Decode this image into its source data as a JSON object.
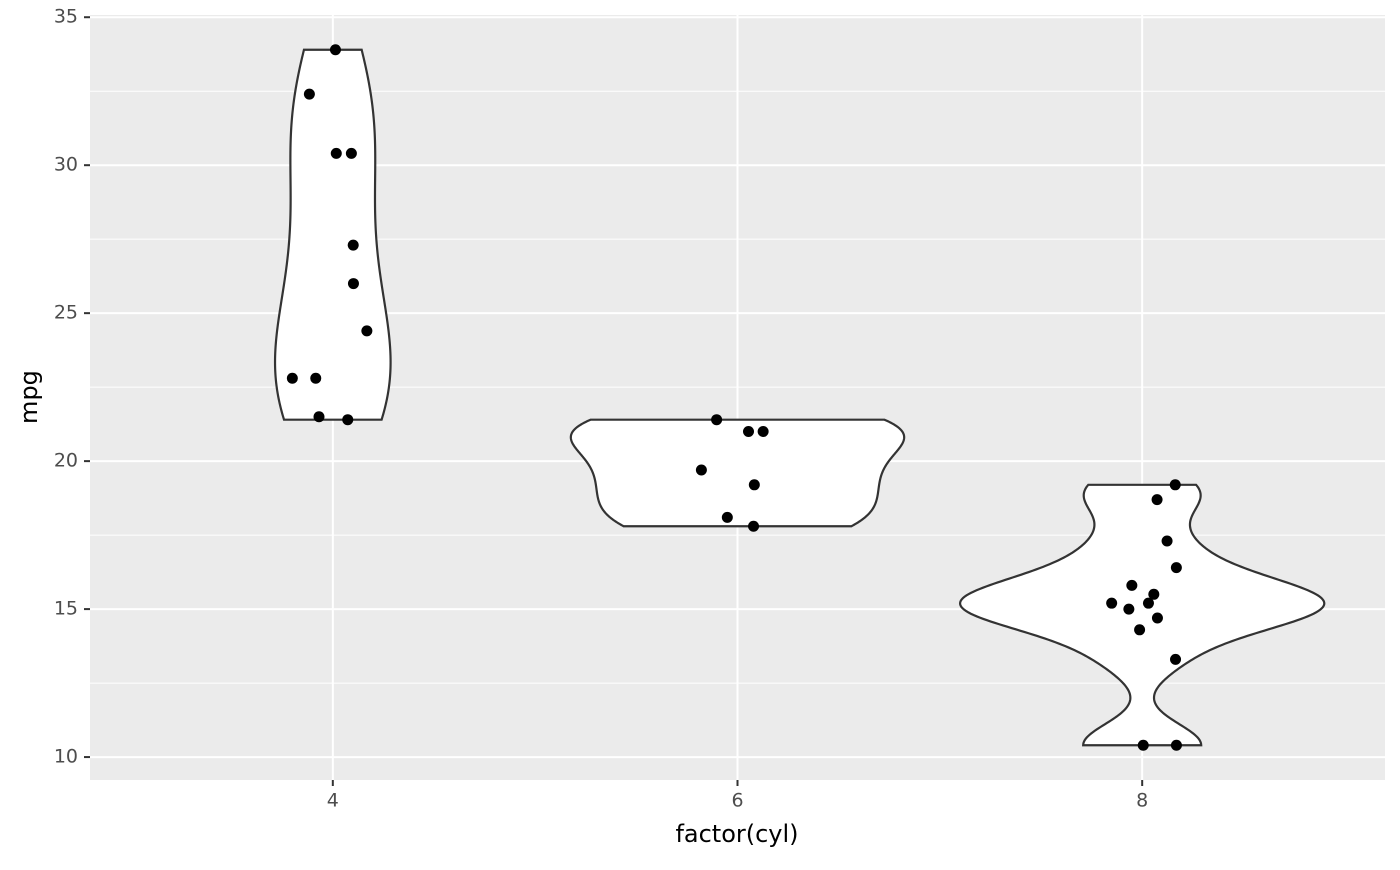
{
  "chart_data": {
    "type": "violin",
    "x_label": "factor(cyl)",
    "y_label": "mpg",
    "categories": [
      "4",
      "6",
      "8"
    ],
    "values": [
      [
        22.8,
        24.4,
        22.8,
        32.4,
        30.4,
        33.9,
        21.5,
        27.3,
        26.0,
        30.4,
        21.4
      ],
      [
        21.0,
        21.0,
        21.4,
        18.1,
        19.2,
        17.8,
        19.7
      ],
      [
        18.7,
        14.3,
        16.4,
        17.3,
        15.2,
        10.4,
        10.4,
        14.7,
        15.5,
        15.2,
        13.3,
        19.2,
        15.8,
        15.0
      ]
    ],
    "violin_fill": "#ffffff",
    "violin_stroke": "#333333",
    "point_color": "#000000",
    "ylim": [
      9.225,
      35.075
    ],
    "yticks": [
      10,
      15,
      20,
      25,
      30,
      35
    ],
    "grid": true
  }
}
